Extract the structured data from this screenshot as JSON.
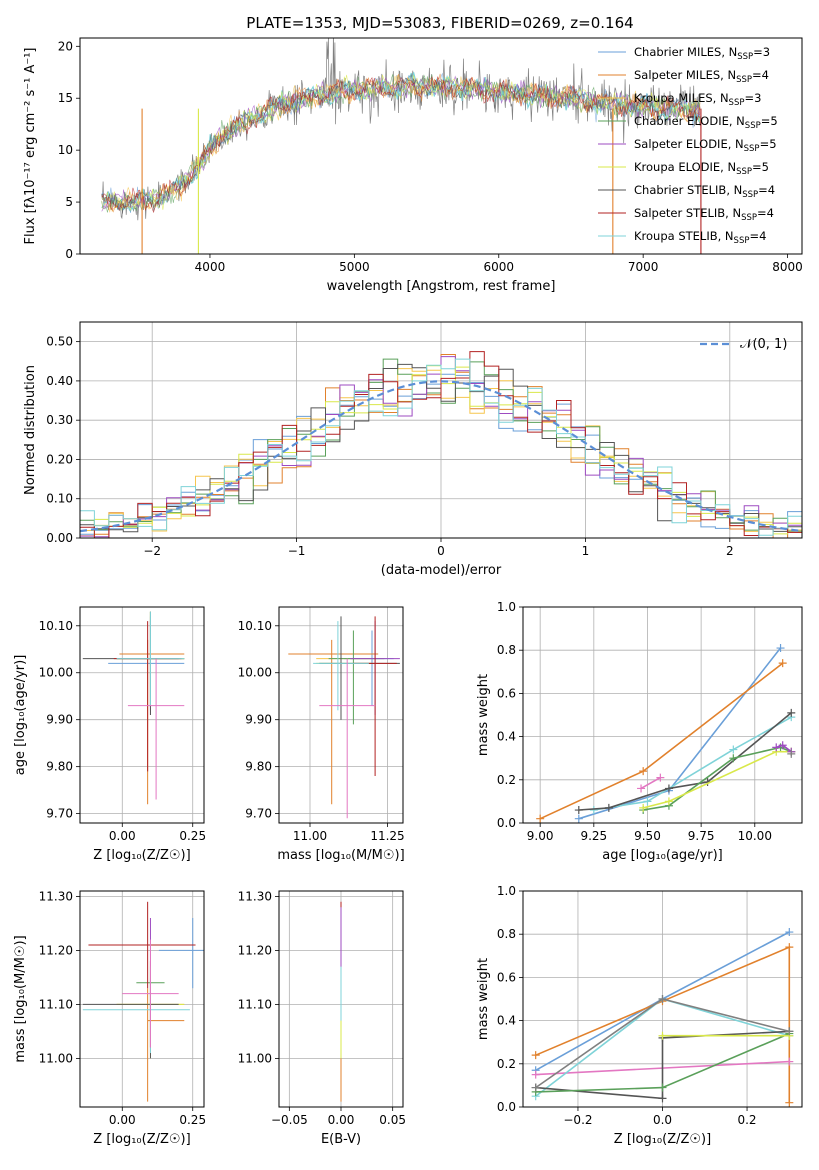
{
  "colors": {
    "chabrier_miles": "#6a9fd8",
    "salpeter_miles": "#e1812c",
    "kroupa_miles": "#f6c54e",
    "chabrier_elodie": "#5aa05a",
    "salpeter_elodie": "#9d4bc1",
    "kroupa_elodie": "#d9e84a",
    "chabrier_stelib": "#555555",
    "salpeter_stelib": "#b22222",
    "kroupa_stelib": "#7fd3d8",
    "pink": "#e377c2",
    "data_gray": "#808080"
  },
  "chart_data": [
    {
      "id": "spectrum",
      "type": "line",
      "title": "PLATE=1353, MJD=53083, FIBERID=0269, z=0.164",
      "xlabel": "wavelength [Angstrom, rest frame]",
      "ylabel": "Flux [fλ10⁻¹⁷ erg cm⁻² s⁻¹ A⁻¹]",
      "xlim": [
        3100,
        8100
      ],
      "ylim": [
        0,
        20.8
      ],
      "xticks": [
        4000,
        5000,
        6000,
        7000,
        8000
      ],
      "yticks": [
        0,
        5,
        10,
        15,
        20
      ],
      "legend_position": "upper right",
      "legend": [
        {
          "label": "Chabrier MILES, N",
          "sub": "SSP",
          "suffix": "=3",
          "color": "chabrier_miles"
        },
        {
          "label": "Salpeter MILES, N",
          "sub": "SSP",
          "suffix": "=4",
          "color": "salpeter_miles"
        },
        {
          "label": "Kroupa MILES, N",
          "sub": "SSP",
          "suffix": "=3",
          "color": "kroupa_miles"
        },
        {
          "label": "Chabrier ELODIE, N",
          "sub": "SSP",
          "suffix": "=5",
          "color": "chabrier_elodie"
        },
        {
          "label": "Salpeter ELODIE, N",
          "sub": "SSP",
          "suffix": "=5",
          "color": "salpeter_elodie"
        },
        {
          "label": "Kroupa ELODIE, N",
          "sub": "SSP",
          "suffix": "=5",
          "color": "kroupa_elodie"
        },
        {
          "label": "Chabrier STELIB, N",
          "sub": "SSP",
          "suffix": "=4",
          "color": "chabrier_stelib"
        },
        {
          "label": "Salpeter STELIB, N",
          "sub": "SSP",
          "suffix": "=4",
          "color": "salpeter_stelib"
        },
        {
          "label": "Kroupa STELIB, N",
          "sub": "SSP",
          "suffix": "=4",
          "color": "kroupa_stelib"
        }
      ],
      "continuum": {
        "x": [
          3250,
          3400,
          3600,
          3800,
          3950,
          4050,
          4200,
          4400,
          4600,
          4800,
          5000,
          5200,
          5400,
          5600,
          5800,
          6000,
          6200,
          6400,
          6600,
          6800,
          7000,
          7200,
          7400
        ],
        "y": [
          5.0,
          5.0,
          5.2,
          6.5,
          9.0,
          11.0,
          12.5,
          13.8,
          14.8,
          15.4,
          15.8,
          16.0,
          16.2,
          16.1,
          15.9,
          15.6,
          15.4,
          15.1,
          14.8,
          14.5,
          14.2,
          14.0,
          13.8
        ]
      },
      "model_cuts": [
        {
          "model": "salpeter_miles",
          "x": 3530
        },
        {
          "model": "kroupa_elodie",
          "x": 3920
        },
        {
          "model": "salpeter_miles",
          "x": 6790
        },
        {
          "model": "salpeter_stelib",
          "x": 7400
        }
      ]
    },
    {
      "id": "residuals",
      "type": "histogram",
      "xlabel": "(data-model)/error",
      "ylabel": "Normed distribution",
      "xlim": [
        -2.5,
        2.5
      ],
      "ylim": [
        0,
        0.55
      ],
      "xticks": [
        -2,
        -1,
        0,
        1,
        2
      ],
      "yticks": [
        0.0,
        0.1,
        0.2,
        0.3,
        0.4,
        0.5
      ],
      "bin_width": 0.1,
      "gaussian_label": "𝒩(0, 1)",
      "gaussian_color": "#5b8fd6",
      "legend_position": "upper right"
    },
    {
      "id": "age_vs_Z",
      "type": "errorbar",
      "xlabel": "Z [log₁₀(Z/Z☉)]",
      "ylabel": "age  [log₁₀(age/yr)]",
      "xlim": [
        -0.15,
        0.29
      ],
      "ylim": [
        9.68,
        10.14
      ],
      "xticks": [
        0.0,
        0.25
      ],
      "yticks": [
        9.7,
        9.8,
        9.9,
        10.0,
        10.1
      ],
      "points": [
        {
          "x": 0.1,
          "y": 10.02,
          "xerr": [
            0.15,
            0.12
          ],
          "yerr": [
            0.1,
            0.1
          ],
          "color": "chabrier_miles"
        },
        {
          "x": 0.09,
          "y": 10.04,
          "xerr": [
            0.1,
            0.13
          ],
          "yerr": [
            0.32,
            0.03
          ],
          "color": "salpeter_miles"
        },
        {
          "x": 0.1,
          "y": 10.03,
          "xerr": [
            0.12,
            0.12
          ],
          "yerr": [
            0.1,
            0.1
          ],
          "color": "kroupa_miles"
        },
        {
          "x": 0.1,
          "y": 10.03,
          "xerr": [
            0.12,
            0.12
          ],
          "yerr": [
            0.1,
            0.1
          ],
          "color": "chabrier_elodie"
        },
        {
          "x": 0.1,
          "y": 10.03,
          "xerr": [
            0.1,
            0.12
          ],
          "yerr": [
            0.12,
            0.08
          ],
          "color": "salpeter_elodie"
        },
        {
          "x": 0.1,
          "y": 10.03,
          "xerr": [
            0.12,
            0.12
          ],
          "yerr": [
            0.1,
            0.1
          ],
          "color": "kroupa_elodie"
        },
        {
          "x": 0.1,
          "y": 10.03,
          "xerr": [
            0.24,
            0.1
          ],
          "yerr": [
            0.12,
            0.1
          ],
          "color": "chabrier_stelib"
        },
        {
          "x": 0.09,
          "y": 10.03,
          "xerr": [
            0.12,
            0.12
          ],
          "yerr": [
            0.24,
            0.08
          ],
          "color": "salpeter_stelib"
        },
        {
          "x": 0.1,
          "y": 10.03,
          "xerr": [
            0.12,
            0.12
          ],
          "yerr": [
            0.1,
            0.1
          ],
          "color": "kroupa_stelib"
        },
        {
          "x": 0.12,
          "y": 9.93,
          "xerr": [
            0.1,
            0.1
          ],
          "yerr": [
            0.2,
            0.1
          ],
          "color": "pink"
        }
      ]
    },
    {
      "id": "age_vs_mass",
      "type": "errorbar",
      "xlabel": "mass [log₁₀(M/M☉)]",
      "ylabel": "",
      "xlim": [
        10.9,
        11.3
      ],
      "ylim": [
        9.68,
        10.14
      ],
      "xticks": [
        11.0,
        11.25
      ],
      "yticks": [
        9.7,
        9.8,
        9.9,
        10.0,
        10.1
      ],
      "points": [
        {
          "x": 11.2,
          "y": 10.03,
          "xerr": [
            0.09,
            0.07
          ],
          "yerr": [
            0.1,
            0.06
          ],
          "color": "chabrier_miles"
        },
        {
          "x": 11.07,
          "y": 10.04,
          "xerr": [
            0.14,
            0.15
          ],
          "yerr": [
            0.32,
            0.03
          ],
          "color": "salpeter_miles"
        },
        {
          "x": 11.1,
          "y": 10.03,
          "xerr": [
            0.08,
            0.1
          ],
          "yerr": [
            0.1,
            0.08
          ],
          "color": "kroupa_miles"
        },
        {
          "x": 11.14,
          "y": 10.03,
          "xerr": [
            0.08,
            0.1
          ],
          "yerr": [
            0.14,
            0.06
          ],
          "color": "chabrier_elodie"
        },
        {
          "x": 11.21,
          "y": 10.03,
          "xerr": [
            0.08,
            0.08
          ],
          "yerr": [
            0.12,
            0.08
          ],
          "color": "salpeter_elodie"
        },
        {
          "x": 11.1,
          "y": 10.02,
          "xerr": [
            0.08,
            0.1
          ],
          "yerr": [
            0.1,
            0.08
          ],
          "color": "kroupa_elodie"
        },
        {
          "x": 11.1,
          "y": 10.02,
          "xerr": [
            0.07,
            0.19
          ],
          "yerr": [
            0.12,
            0.1
          ],
          "color": "chabrier_stelib"
        },
        {
          "x": 11.21,
          "y": 10.02,
          "xerr": [
            0.07,
            0.07
          ],
          "yerr": [
            0.24,
            0.1
          ],
          "color": "salpeter_stelib"
        },
        {
          "x": 11.09,
          "y": 10.02,
          "xerr": [
            0.08,
            0.1
          ],
          "yerr": [
            0.1,
            0.09
          ],
          "color": "kroupa_stelib"
        },
        {
          "x": 11.12,
          "y": 9.93,
          "xerr": [
            0.09,
            0.09
          ],
          "yerr": [
            0.24,
            0.1
          ],
          "color": "pink"
        }
      ]
    },
    {
      "id": "mass_weight_vs_age",
      "type": "line",
      "xlabel": "age  [log₁₀(age/yr)]",
      "ylabel": "mass weight",
      "xlim": [
        8.92,
        10.22
      ],
      "ylim": [
        0,
        1.0
      ],
      "xticks": [
        9.0,
        9.25,
        9.5,
        9.75,
        10.0
      ],
      "yticks": [
        0.0,
        0.2,
        0.4,
        0.6,
        0.8,
        1.0
      ],
      "series": [
        {
          "color": "chabrier_miles",
          "x": [
            9.18,
            9.6,
            10.12
          ],
          "y": [
            0.02,
            0.15,
            0.81
          ]
        },
        {
          "color": "salpeter_miles",
          "x": [
            9.0,
            9.48,
            10.13
          ],
          "y": [
            0.02,
            0.24,
            0.74
          ]
        },
        {
          "color": "pink",
          "x": [
            9.47,
            9.56
          ],
          "y": [
            0.16,
            0.21
          ]
        },
        {
          "color": "kroupa_stelib",
          "x": [
            9.25,
            9.5,
            9.9,
            10.17
          ],
          "y": [
            0.06,
            0.1,
            0.34,
            0.49
          ]
        },
        {
          "color": "chabrier_stelib",
          "x": [
            9.18,
            9.32,
            9.6,
            9.78,
            10.17
          ],
          "y": [
            0.06,
            0.07,
            0.16,
            0.19,
            0.51
          ]
        },
        {
          "color": "chabrier_elodie",
          "x": [
            9.48,
            9.6,
            9.9,
            10.12,
            10.17
          ],
          "y": [
            0.06,
            0.08,
            0.3,
            0.35,
            0.33
          ]
        },
        {
          "color": "kroupa_elodie",
          "x": [
            9.48,
            9.6,
            10.1,
            10.17
          ],
          "y": [
            0.07,
            0.1,
            0.33,
            0.33
          ]
        },
        {
          "color": "salpeter_elodie",
          "x": [
            10.1,
            10.13,
            10.17
          ],
          "y": [
            0.35,
            0.36,
            0.33
          ]
        },
        {
          "color": "data_gray",
          "x": [
            10.17
          ],
          "y": [
            0.32
          ]
        }
      ]
    },
    {
      "id": "mass_vs_Z",
      "type": "errorbar",
      "xlabel": "Z [log₁₀(Z/Z☉)]",
      "ylabel": "mass [log₁₀(M/M☉)]",
      "xlim": [
        -0.15,
        0.29
      ],
      "ylim": [
        10.91,
        11.31
      ],
      "xticks": [
        0.0,
        0.25
      ],
      "yticks": [
        11.0,
        11.1,
        11.2,
        11.3
      ],
      "points": [
        {
          "x": 0.25,
          "y": 11.2,
          "xerr": [
            0.12,
            0.04
          ],
          "yerr": [
            0.07,
            0.06
          ],
          "color": "chabrier_miles"
        },
        {
          "x": 0.09,
          "y": 11.07,
          "xerr": [
            0.0,
            0.13
          ],
          "yerr": [
            0.15,
            0.06
          ],
          "color": "salpeter_miles"
        },
        {
          "x": 0.1,
          "y": 11.1,
          "xerr": [
            0.12,
            0.12
          ],
          "yerr": [
            0.08,
            0.08
          ],
          "color": "kroupa_miles"
        },
        {
          "x": 0.1,
          "y": 11.14,
          "xerr": [
            0.05,
            0.05
          ],
          "yerr": [
            0.12,
            0.04
          ],
          "color": "chabrier_elodie"
        },
        {
          "x": 0.1,
          "y": 11.21,
          "xerr": [
            0.1,
            0.1
          ],
          "yerr": [
            0.06,
            0.05
          ],
          "color": "salpeter_elodie"
        },
        {
          "x": 0.1,
          "y": 11.1,
          "xerr": [
            0.12,
            0.12
          ],
          "yerr": [
            0.1,
            0.07
          ],
          "color": "kroupa_elodie"
        },
        {
          "x": 0.1,
          "y": 11.1,
          "xerr": [
            0.24,
            0.1
          ],
          "yerr": [
            0.1,
            0.05
          ],
          "color": "chabrier_stelib"
        },
        {
          "x": 0.09,
          "y": 11.21,
          "xerr": [
            0.21,
            0.17
          ],
          "yerr": [
            0.08,
            0.08
          ],
          "color": "salpeter_stelib"
        },
        {
          "x": 0.1,
          "y": 11.09,
          "xerr": [
            0.24,
            0.14
          ],
          "yerr": [
            0.08,
            0.08
          ],
          "color": "kroupa_stelib"
        },
        {
          "x": 0.1,
          "y": 11.12,
          "xerr": [
            0.1,
            0.1
          ],
          "yerr": [
            0.1,
            0.1
          ],
          "color": "pink"
        }
      ]
    },
    {
      "id": "mass_vs_ebv",
      "type": "errorbar",
      "xlabel": "E(B-V)",
      "ylabel": "",
      "xlim": [
        -0.06,
        0.06
      ],
      "ylim": [
        10.91,
        11.31
      ],
      "xticks": [
        -0.05,
        0.0,
        0.05
      ],
      "yticks": [
        11.0,
        11.1,
        11.2,
        11.3
      ],
      "points": [
        {
          "x": 0.0,
          "y": 11.07,
          "xerr": [
            0,
            0
          ],
          "yerr": [
            0.15,
            0.07
          ],
          "color": "salpeter_miles"
        },
        {
          "x": 0.0,
          "y": 11.1,
          "xerr": [
            0,
            0
          ],
          "yerr": [
            0.1,
            0.07
          ],
          "color": "kroupa_elodie"
        },
        {
          "x": 0.0,
          "y": 11.21,
          "xerr": [
            0,
            0
          ],
          "yerr": [
            0.07,
            0.08
          ],
          "color": "salpeter_stelib"
        },
        {
          "x": 0.0,
          "y": 11.2,
          "xerr": [
            0,
            0
          ],
          "yerr": [
            0.05,
            0.08
          ],
          "color": "salpeter_elodie"
        },
        {
          "x": 0.0,
          "y": 11.12,
          "xerr": [
            0,
            0
          ],
          "yerr": [
            0.05,
            0.05
          ],
          "color": "kroupa_stelib"
        }
      ]
    },
    {
      "id": "mass_weight_vs_Z",
      "type": "line",
      "xlabel": "Z [log₁₀(Z/Z☉)]",
      "ylabel": "mass weight",
      "xlim": [
        -0.33,
        0.33
      ],
      "ylim": [
        0,
        1.0
      ],
      "xticks": [
        -0.2,
        0.0,
        0.2
      ],
      "yticks": [
        0.0,
        0.2,
        0.4,
        0.6,
        0.8,
        1.0
      ],
      "series": [
        {
          "color": "chabrier_miles",
          "x": [
            -0.3,
            0.0,
            0.3
          ],
          "y": [
            0.17,
            0.5,
            0.81
          ]
        },
        {
          "color": "salpeter_miles",
          "x": [
            -0.3,
            0.0,
            0.3,
            0.3
          ],
          "y": [
            0.24,
            0.49,
            0.74,
            0.02
          ]
        },
        {
          "color": "pink",
          "x": [
            -0.3,
            0.3
          ],
          "y": [
            0.15,
            0.21
          ]
        },
        {
          "color": "kroupa_stelib",
          "x": [
            -0.3,
            0.0,
            0.3
          ],
          "y": [
            0.05,
            0.5,
            0.33
          ]
        },
        {
          "color": "chabrier_stelib",
          "x": [
            -0.3,
            0.0,
            0.0,
            0.3
          ],
          "y": [
            0.09,
            0.04,
            0.32,
            0.35
          ]
        },
        {
          "color": "chabrier_elodie",
          "x": [
            -0.3,
            0.0,
            0.3
          ],
          "y": [
            0.07,
            0.09,
            0.34
          ]
        },
        {
          "color": "kroupa_elodie",
          "x": [
            0.0,
            0.3
          ],
          "y": [
            0.33,
            0.33
          ]
        },
        {
          "color": "data_gray",
          "x": [
            -0.3,
            0.0,
            0.3
          ],
          "y": [
            0.09,
            0.5,
            0.35
          ]
        }
      ]
    }
  ]
}
